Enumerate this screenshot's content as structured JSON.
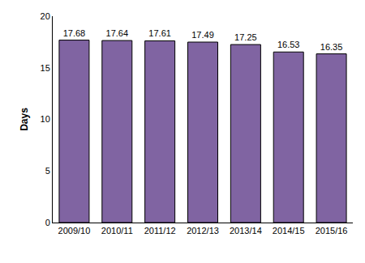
{
  "chart_data": {
    "type": "bar",
    "y_label": "Days",
    "categories": [
      "2009/10",
      "2010/11",
      "2011/12",
      "2012/13",
      "2013/14",
      "2014/15",
      "2015/16"
    ],
    "values": [
      17.68,
      17.64,
      17.61,
      17.49,
      17.25,
      16.53,
      16.35
    ],
    "color": "#8064a2",
    "ylim": [
      0,
      20
    ],
    "yticks": [
      0,
      5,
      10,
      15,
      20
    ],
    "grid": false,
    "data_labels": true
  }
}
